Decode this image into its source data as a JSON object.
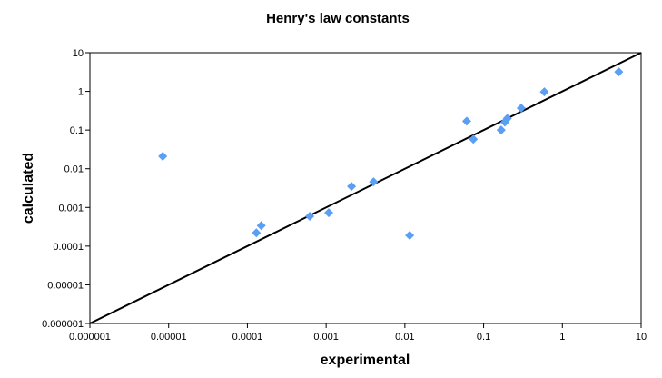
{
  "chart_data": {
    "type": "scatter",
    "title": "Henry's law constants",
    "xlabel": "experimental",
    "ylabel": "calculated",
    "xscale": "log",
    "yscale": "log",
    "xlim": [
      1e-06,
      10
    ],
    "ylim": [
      1e-06,
      10
    ],
    "x_tick_labels": [
      "0.000001",
      "0.00001",
      "0.0001",
      "0.001",
      "0.01",
      "0.1",
      "1",
      "10"
    ],
    "y_tick_labels": [
      "0.000001",
      "0.00001",
      "0.0001",
      "0.001",
      "0.01",
      "0.1",
      "1",
      "10"
    ],
    "grid": false,
    "legend": "none",
    "marker": "diamond",
    "marker_color": "#5B9FF5",
    "reference_line": {
      "label": "",
      "from": [
        1e-06,
        1e-06
      ],
      "to": [
        10,
        10
      ],
      "color": "#000000"
    },
    "points": [
      {
        "x": 8.4e-06,
        "y": 0.021
      },
      {
        "x": 0.00013,
        "y": 0.00022
      },
      {
        "x": 0.00015,
        "y": 0.00034
      },
      {
        "x": 0.00062,
        "y": 0.00059
      },
      {
        "x": 0.00108,
        "y": 0.00073
      },
      {
        "x": 0.0021,
        "y": 0.0035
      },
      {
        "x": 0.004,
        "y": 0.0046
      },
      {
        "x": 0.0115,
        "y": 0.00019
      },
      {
        "x": 0.061,
        "y": 0.17
      },
      {
        "x": 0.074,
        "y": 0.058
      },
      {
        "x": 0.167,
        "y": 0.1
      },
      {
        "x": 0.186,
        "y": 0.16
      },
      {
        "x": 0.2,
        "y": 0.2
      },
      {
        "x": 0.3,
        "y": 0.37
      },
      {
        "x": 0.59,
        "y": 0.97
      },
      {
        "x": 5.2,
        "y": 3.2
      }
    ]
  }
}
